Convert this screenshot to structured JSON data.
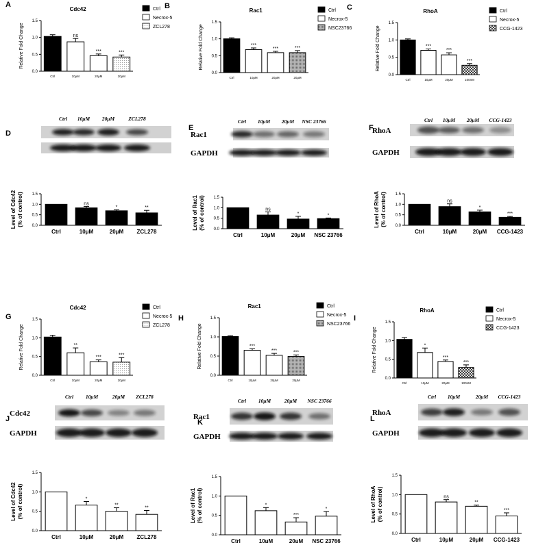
{
  "colors": {
    "black": "#000000",
    "white": "#ffffff"
  },
  "chart_data": [
    {
      "panel": "A",
      "type": "bar",
      "style": "rt",
      "title": "Cdc42",
      "ylabel": "Relative Fold Change",
      "ylim": [
        0,
        1.5
      ],
      "yticks": [
        "0.0",
        "0.5",
        "1.0",
        "1.5"
      ],
      "categories": [
        "Ctrl",
        "10μM",
        "20μM",
        "20μM"
      ],
      "values": [
        1.03,
        0.87,
        0.46,
        0.42
      ],
      "errors": [
        0.05,
        0.1,
        0.05,
        0.06
      ],
      "significance": [
        "",
        "ns",
        "***",
        "***"
      ],
      "fills": [
        "black",
        "white",
        "white",
        "dots"
      ],
      "legend": [
        "Ctrl",
        "Necrox-5",
        "ZCL278"
      ],
      "legend_fills": [
        "black",
        "white",
        "dots"
      ]
    },
    {
      "panel": "B",
      "type": "bar",
      "style": "rt",
      "title": "Rac1",
      "ylabel": "Relative Fold Change",
      "ylim": [
        0,
        1.5
      ],
      "yticks": [
        "0.0",
        "0.5",
        "1.0",
        "1.5"
      ],
      "categories": [
        "Ctrl",
        "10μM",
        "20μM",
        "20μM"
      ],
      "values": [
        1.0,
        0.68,
        0.59,
        0.59
      ],
      "errors": [
        0.03,
        0.05,
        0.04,
        0.06
      ],
      "significance": [
        "",
        "***",
        "***",
        "***"
      ],
      "fills": [
        "black",
        "white",
        "white",
        "gray"
      ],
      "legend": [
        "Ctrl",
        "Necrox-5",
        "NSC23766"
      ],
      "legend_fills": [
        "black",
        "white",
        "gray"
      ]
    },
    {
      "panel": "C",
      "type": "bar",
      "style": "rt",
      "title": "RhoA",
      "ylabel": "Relative Fold Change",
      "ylim": [
        0,
        1.5
      ],
      "yticks": [
        "0.0",
        "0.5",
        "1.0",
        "1.5"
      ],
      "categories": [
        "Ctrl",
        "10μM",
        "20μM",
        "100nM"
      ],
      "values": [
        1.0,
        0.7,
        0.57,
        0.27
      ],
      "errors": [
        0.03,
        0.04,
        0.06,
        0.05
      ],
      "significance": [
        "",
        "***",
        "***",
        "***"
      ],
      "fills": [
        "black",
        "white",
        "white",
        "check"
      ],
      "legend": [
        "Ctrl",
        "Necrox-5",
        "CCG-1423"
      ],
      "legend_fills": [
        "black",
        "white",
        "check"
      ]
    },
    {
      "panel": "D",
      "type": "bar",
      "style": "wb",
      "ylabel": "Level of Cdc42",
      "ylabel2": "(% of control)",
      "ylim": [
        0,
        1.5
      ],
      "yticks": [
        "0.0",
        "0.5",
        "1.0",
        "1.5"
      ],
      "categories": [
        "Ctrl",
        "10μM",
        "20μM",
        "ZCL278"
      ],
      "values": [
        1.0,
        0.83,
        0.69,
        0.59
      ],
      "errors": [
        0,
        0.07,
        0.05,
        0.12
      ],
      "significance": [
        "",
        "ns",
        "*",
        "**"
      ],
      "fills": [
        "black",
        "black",
        "black",
        "black"
      ],
      "blot_lanes": [
        "Ctrl",
        "10μM",
        "20μM",
        "ZCL278"
      ],
      "blot_rows": [
        "Cdc42",
        "GAPDH"
      ]
    },
    {
      "panel": "E",
      "type": "bar",
      "style": "wb",
      "ylabel": "Level of Rac1",
      "ylabel2": "(% of control)",
      "ylim": [
        0,
        1.5
      ],
      "yticks": [
        "0.0",
        "0.5",
        "1.0",
        "1.5"
      ],
      "categories": [
        "Ctrl",
        "10μM",
        "20μM",
        "NSC 23766"
      ],
      "values": [
        1.0,
        0.65,
        0.46,
        0.48
      ],
      "errors": [
        0,
        0.15,
        0.13,
        0.03
      ],
      "significance": [
        "",
        "ns",
        "*",
        "*"
      ],
      "fills": [
        "black",
        "black",
        "black",
        "black"
      ],
      "blot_lanes": [
        "Ctrl",
        "10μM",
        "20μM",
        "NSC 23766"
      ],
      "blot_rows": [
        "Rac1",
        "GAPDH"
      ]
    },
    {
      "panel": "F",
      "type": "bar",
      "style": "wb",
      "ylabel": "Level of RhoA",
      "ylabel2": "(% of control)",
      "ylim": [
        0,
        1.5
      ],
      "yticks": [
        "0.0",
        "0.5",
        "1.0",
        "1.5"
      ],
      "categories": [
        "Ctrl",
        "10μM",
        "20μM",
        "CCG-1423"
      ],
      "values": [
        1.0,
        0.89,
        0.64,
        0.38
      ],
      "errors": [
        0,
        0.13,
        0.08,
        0.04
      ],
      "significance": [
        "",
        "ns",
        "*",
        "***"
      ],
      "fills": [
        "black",
        "black",
        "black",
        "black"
      ],
      "blot_lanes": [
        "Ctrl",
        "10μM",
        "20μM",
        "CCG-1423"
      ],
      "blot_rows": [
        "RhoA",
        "GAPDH"
      ]
    },
    {
      "panel": "G",
      "type": "bar",
      "style": "rt",
      "title": "Cdc42",
      "ylabel": "Relative Fold Change",
      "ylim": [
        0,
        1.5
      ],
      "yticks": [
        "0.0",
        "0.5",
        "1.0",
        "1.5"
      ],
      "categories": [
        "Ctrl",
        "10μM",
        "20μM",
        "20μM"
      ],
      "values": [
        1.02,
        0.6,
        0.36,
        0.35
      ],
      "errors": [
        0.05,
        0.13,
        0.05,
        0.12
      ],
      "significance": [
        "",
        "**",
        "***",
        "***"
      ],
      "fills": [
        "black",
        "white",
        "white",
        "dots"
      ],
      "legend": [
        "Ctrl",
        "Necrox-5",
        "ZCL278"
      ],
      "legend_fills": [
        "black",
        "white",
        "dots"
      ]
    },
    {
      "panel": "H",
      "type": "bar",
      "style": "rt",
      "title": "Rac1",
      "ylabel": "Relative Fold Change",
      "ylim": [
        0,
        1.5
      ],
      "yticks": [
        "0.0",
        "0.5",
        "1.0",
        "1.5"
      ],
      "categories": [
        "Ctrl",
        "10μM",
        "20μM",
        "20μM"
      ],
      "values": [
        1.01,
        0.65,
        0.52,
        0.49
      ],
      "errors": [
        0.02,
        0.04,
        0.05,
        0.04
      ],
      "significance": [
        "",
        "***",
        "***",
        "***"
      ],
      "fills": [
        "black",
        "white",
        "white",
        "gray"
      ],
      "legend": [
        "Ctrl",
        "Necrox-5",
        "NSC23766"
      ],
      "legend_fills": [
        "black",
        "white",
        "gray"
      ]
    },
    {
      "panel": "I",
      "type": "bar",
      "style": "rt",
      "title": "RhoA",
      "ylabel": "Relative Fold Change",
      "ylim": [
        0,
        1.5
      ],
      "yticks": [
        "0.0",
        "0.5",
        "1.0",
        "1.5"
      ],
      "categories": [
        "Ctrl",
        "10μM",
        "20μM",
        "100nM"
      ],
      "values": [
        1.03,
        0.68,
        0.44,
        0.28
      ],
      "errors": [
        0.05,
        0.12,
        0.04,
        0.07
      ],
      "significance": [
        "",
        "*",
        "***",
        "***"
      ],
      "fills": [
        "black",
        "white",
        "white",
        "check"
      ],
      "legend": [
        "Ctrl",
        "Necrox-5",
        "CCG-1423"
      ],
      "legend_fills": [
        "black",
        "white",
        "check"
      ]
    },
    {
      "panel": "J",
      "type": "bar",
      "style": "wb",
      "ylabel": "Level of Cdc42",
      "ylabel2": "(% of control)",
      "ylim": [
        0,
        1.5
      ],
      "yticks": [
        "0.0",
        "0.5",
        "1.0",
        "1.5"
      ],
      "categories": [
        "Ctrl",
        "10μM",
        "20μM",
        "ZCL278"
      ],
      "values": [
        1.0,
        0.66,
        0.5,
        0.42
      ],
      "errors": [
        0,
        0.09,
        0.09,
        0.1
      ],
      "significance": [
        "",
        "*",
        "**",
        "**"
      ],
      "fills": [
        "white",
        "white",
        "white",
        "white"
      ],
      "blot_lanes": [
        "Ctrl",
        "10μM",
        "20μM",
        "ZCL278"
      ],
      "blot_rows": [
        "Cdc42",
        "GAPDH"
      ]
    },
    {
      "panel": "K",
      "type": "bar",
      "style": "wb",
      "ylabel": "Level of Rac1",
      "ylabel2": "(% of control)",
      "ylim": [
        0,
        1.5
      ],
      "yticks": [
        "0.0",
        "0.5",
        "1.0",
        "1.5"
      ],
      "categories": [
        "Ctrl",
        "10μM",
        "20μM",
        "NSC 23766"
      ],
      "values": [
        1.0,
        0.62,
        0.33,
        0.48
      ],
      "errors": [
        0,
        0.08,
        0.11,
        0.12
      ],
      "significance": [
        "",
        "*",
        "***",
        "*"
      ],
      "fills": [
        "white",
        "white",
        "white",
        "white"
      ],
      "blot_lanes": [
        "Ctrl",
        "10μM",
        "20μM",
        "NSC 23766"
      ],
      "blot_rows": [
        "Rac1",
        "GAPDH"
      ]
    },
    {
      "panel": "L",
      "type": "bar",
      "style": "wb",
      "ylabel": "Level of RhoA",
      "ylabel2": "(% of control)",
      "ylim": [
        0,
        1.5
      ],
      "yticks": [
        "0.0",
        "0.5",
        "1.0",
        "1.5"
      ],
      "categories": [
        "Ctrl",
        "10μM",
        "20μM",
        "CCG-1423"
      ],
      "values": [
        1.0,
        0.81,
        0.7,
        0.45
      ],
      "errors": [
        0,
        0.06,
        0.03,
        0.08
      ],
      "significance": [
        "",
        "ns",
        "**",
        "***"
      ],
      "fills": [
        "white",
        "white",
        "white",
        "white"
      ],
      "blot_lanes": [
        "Ctrl",
        "10μM",
        "20μM",
        "CCG-1423"
      ],
      "blot_rows": [
        "RhoA",
        "GAPDH"
      ]
    }
  ]
}
